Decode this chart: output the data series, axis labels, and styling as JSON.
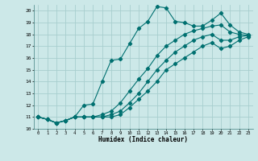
{
  "xlabel": "Humidex (Indice chaleur)",
  "ylabel": "",
  "xlim": [
    -0.5,
    23.5
  ],
  "ylim": [
    10,
    20.5
  ],
  "yticks": [
    10,
    11,
    12,
    13,
    14,
    15,
    16,
    17,
    18,
    19,
    20
  ],
  "xticks": [
    0,
    1,
    2,
    3,
    4,
    5,
    6,
    7,
    8,
    9,
    10,
    11,
    12,
    13,
    14,
    15,
    16,
    17,
    18,
    19,
    20,
    21,
    22,
    23
  ],
  "background_color": "#cce8e8",
  "grid_color": "#a8cece",
  "line_color": "#007070",
  "lines": [
    {
      "x": [
        0,
        1,
        2,
        3,
        4,
        5,
        6,
        7,
        8,
        9,
        10,
        11,
        12,
        13,
        14,
        15,
        16,
        17,
        18,
        19,
        20,
        21,
        22,
        23
      ],
      "y": [
        11.0,
        10.8,
        10.5,
        10.7,
        11.0,
        12.0,
        12.1,
        14.0,
        15.8,
        15.9,
        17.2,
        18.5,
        19.1,
        20.35,
        20.25,
        19.1,
        19.0,
        18.7,
        18.7,
        19.2,
        19.8,
        18.8,
        18.2,
        18.0
      ]
    },
    {
      "x": [
        0,
        1,
        2,
        3,
        4,
        5,
        6,
        7,
        8,
        9,
        10,
        11,
        12,
        13,
        14,
        15,
        16,
        17,
        18,
        19,
        20,
        21,
        22,
        23
      ],
      "y": [
        11.0,
        10.8,
        10.5,
        10.7,
        11.0,
        11.0,
        11.0,
        11.2,
        11.5,
        12.2,
        13.2,
        14.2,
        15.1,
        16.2,
        17.0,
        17.5,
        18.0,
        18.3,
        18.5,
        18.7,
        18.8,
        18.2,
        18.0,
        17.9
      ]
    },
    {
      "x": [
        0,
        1,
        2,
        3,
        4,
        5,
        6,
        7,
        8,
        9,
        10,
        11,
        12,
        13,
        14,
        15,
        16,
        17,
        18,
        19,
        20,
        21,
        22,
        23
      ],
      "y": [
        11.0,
        10.8,
        10.5,
        10.7,
        11.0,
        11.0,
        11.0,
        11.0,
        11.2,
        11.5,
        12.2,
        13.0,
        14.0,
        15.0,
        15.8,
        16.5,
        17.0,
        17.5,
        17.8,
        18.0,
        17.5,
        17.5,
        17.8,
        17.9
      ]
    },
    {
      "x": [
        0,
        1,
        2,
        3,
        4,
        5,
        6,
        7,
        8,
        9,
        10,
        11,
        12,
        13,
        14,
        15,
        16,
        17,
        18,
        19,
        20,
        21,
        22,
        23
      ],
      "y": [
        11.0,
        10.8,
        10.5,
        10.7,
        11.0,
        11.0,
        11.0,
        11.0,
        11.0,
        11.2,
        11.8,
        12.5,
        13.2,
        14.0,
        15.0,
        15.5,
        16.0,
        16.5,
        17.0,
        17.3,
        16.8,
        17.0,
        17.5,
        17.8
      ]
    }
  ]
}
